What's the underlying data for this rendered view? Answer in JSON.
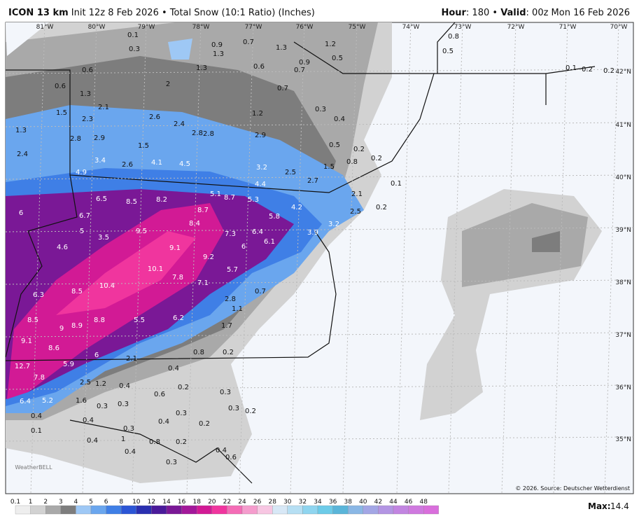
{
  "header": {
    "model": "ICON 13 km",
    "run": "Init 12z 8 Feb 2026 • Total Snow (10:1 Ratio) (Inches)",
    "hour_label": "Hour",
    "hour": ": 180 • ",
    "valid_label": "Valid",
    "valid": ": 00z Mon 16 Feb 2026"
  },
  "longitudes": [
    "81°W",
    "80°W",
    "79°W",
    "78°W",
    "77°W",
    "76°W",
    "75°W",
    "74°W",
    "73°W",
    "72°W",
    "71°W",
    "70°W"
  ],
  "latitudes": [
    "42°N",
    "41°N",
    "40°N",
    "39°N",
    "38°N",
    "37°N",
    "36°N",
    "35°N"
  ],
  "snow_labels": [
    0.1,
    0.3,
    0.9,
    1.3,
    0.7,
    1.3,
    1.2,
    0.5,
    0.9,
    0.7,
    0.6,
    1.3,
    0.6,
    0.6,
    1.3,
    2.0,
    2.1,
    0.7,
    1.5,
    2.3,
    2.6,
    2.4,
    2.8,
    2.8,
    1.2,
    0.3,
    0.4,
    1.3,
    2.8,
    2.9,
    2.9,
    1.5,
    2.4,
    3.4,
    2.6,
    4.1,
    4.5,
    0.5,
    0.2,
    0.8,
    0.2,
    4.9,
    3.2,
    2.5,
    1.5,
    2.7,
    4.4,
    0.1,
    6.5,
    8.5,
    8.2,
    5.1,
    8.7,
    5.3,
    2.1,
    6.0,
    6.7,
    8.7,
    5.8,
    4.2,
    2.5,
    0.2,
    5.0,
    3.5,
    9.5,
    8.4,
    7.3,
    6.4,
    6.1,
    6.0,
    3.9,
    3.2,
    4.6,
    9.1,
    9.2,
    10.1,
    5.7,
    6.3,
    10.4,
    7.8,
    7.1,
    8.5,
    0.7,
    2.8,
    1.1,
    8.5,
    9.0,
    8.9,
    8.8,
    5.5,
    6.2,
    1.7,
    9.1,
    8.6,
    6.0,
    2.1,
    0.8,
    0.2,
    12.7,
    5.9,
    0.4,
    7.8,
    2.5,
    1.2,
    0.4,
    0.2,
    0.6,
    0.3,
    1.6,
    6.4,
    5.2,
    0.3,
    0.3,
    0.3,
    0.2,
    0.4,
    0.4,
    0.3,
    0.4,
    0.2,
    0.1,
    0.3,
    1.0,
    0.4,
    0.8,
    0.2,
    0.4,
    0.4,
    0.6,
    0.3,
    0.8,
    0.5,
    0.1,
    0.2,
    0.2
  ],
  "legend": {
    "labels": [
      0.1,
      1,
      2,
      3,
      4,
      5,
      6,
      8,
      10,
      12,
      14,
      16,
      18,
      20,
      22,
      24,
      26,
      28,
      30,
      32,
      34,
      36,
      38,
      40,
      42,
      44,
      46,
      48
    ],
    "colors": [
      "#eeeeee",
      "#d2d2d2",
      "#a9a9a9",
      "#7d7d7d",
      "#9ec8f5",
      "#6aa6ee",
      "#3f7fe6",
      "#2b55d6",
      "#2a2fb0",
      "#4a1a9a",
      "#7a1896",
      "#a3189a",
      "#d21a95",
      "#f0359e",
      "#f46cb6",
      "#f59ccd",
      "#f7c6e2",
      "#d8e8f6",
      "#b6dff3",
      "#8fd5ef",
      "#6ccbe8",
      "#5ab5d9",
      "#8ab7e5",
      "#a3a6e5",
      "#b395e3",
      "#c285e1",
      "#cf79df",
      "#d96edc"
    ]
  },
  "max_label": "Max:",
  "max": 14.4,
  "source": "© 2026. Source: Deutscher Wetterdienst",
  "logo": "WeatherBELL"
}
